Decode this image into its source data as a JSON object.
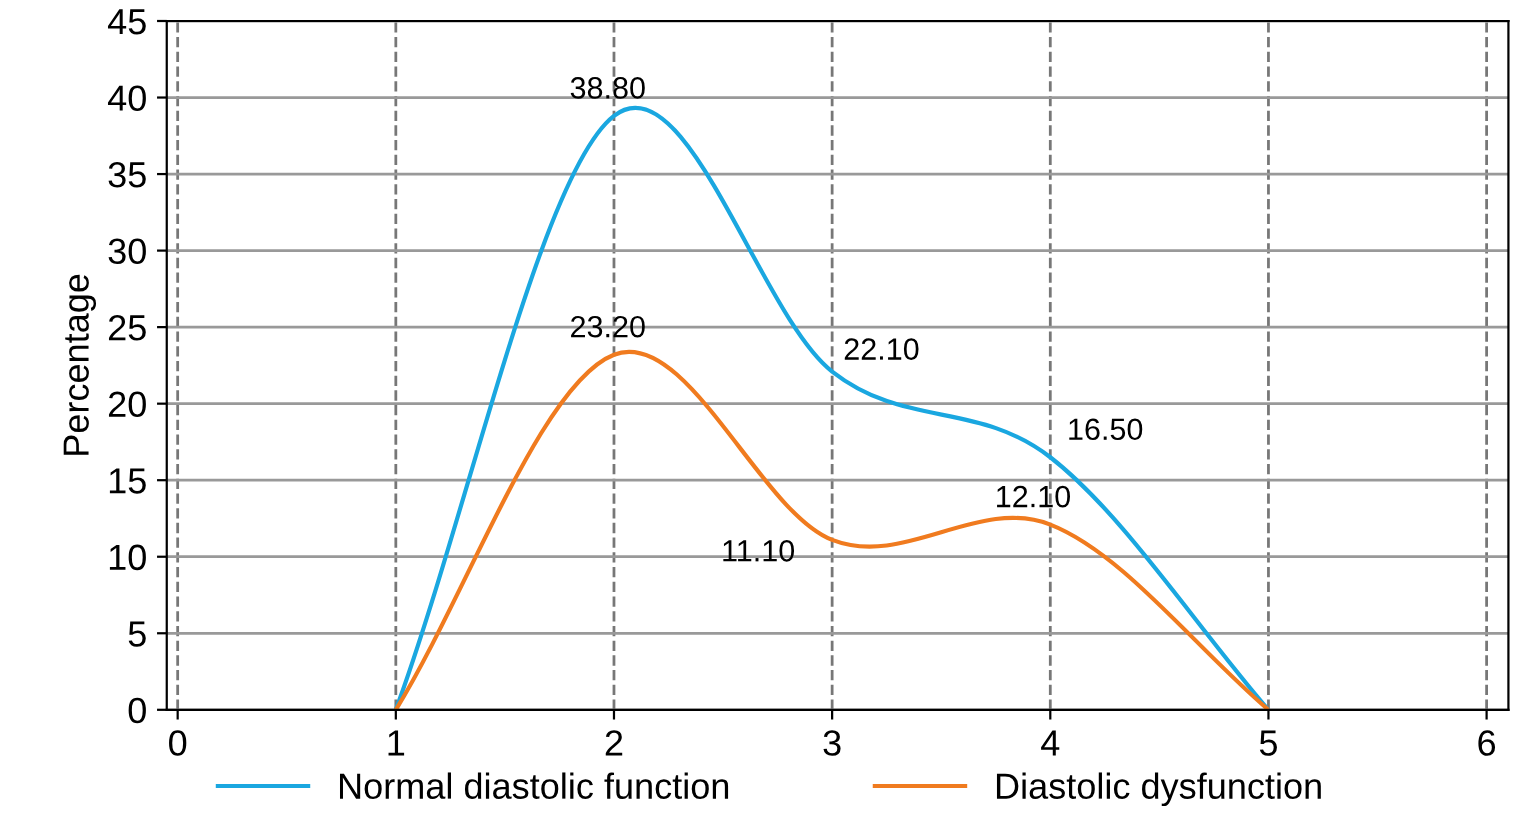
{
  "chart_data": {
    "type": "line",
    "ylabel": "Percentage",
    "x": [
      1,
      2,
      3,
      4,
      5
    ],
    "series": [
      {
        "name": "Normal diastolic function",
        "color": "#1aa7e0",
        "values": [
          0,
          38.8,
          22.1,
          16.5,
          0
        ],
        "value_labels": [
          null,
          "38.80",
          "22.10",
          "16.50",
          null
        ]
      },
      {
        "name": "Diastolic dysfunction",
        "color": "#f07b1f",
        "values": [
          0,
          23.2,
          11.1,
          12.1,
          0
        ],
        "value_labels": [
          null,
          "23.20",
          "11.10",
          "12.10",
          null
        ]
      }
    ],
    "xlim": [
      -0.05,
      6.1
    ],
    "xticks": [
      0,
      1,
      2,
      3,
      4,
      5,
      6
    ],
    "ylim": [
      0,
      45
    ],
    "yticks": [
      0,
      5,
      10,
      15,
      20,
      25,
      30,
      35,
      40,
      45
    ],
    "grid": true,
    "legend": "bottom",
    "marker": "none",
    "line_style": "solid"
  }
}
